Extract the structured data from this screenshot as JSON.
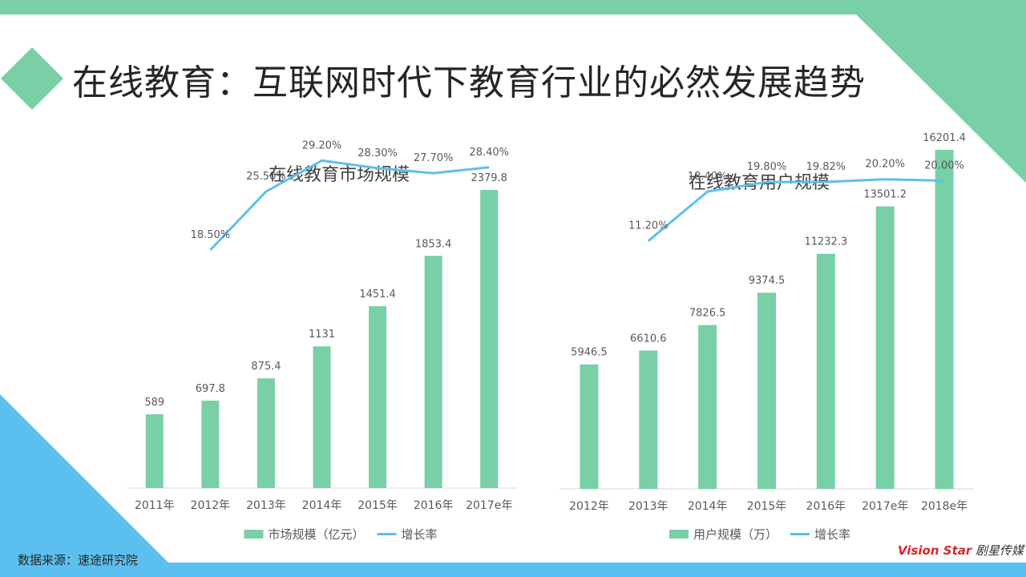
{
  "slide": {
    "title": "在线教育：互联网时代下教育行业的必然发展趋势",
    "source": "数据来源：速途研究院",
    "logo_text_a": "Vision Star",
    "logo_text_b": "剧星传媒"
  },
  "colors": {
    "bar": "#79cfa6",
    "line": "#5bc0f0",
    "top_bar": "#79cfa6",
    "bottom_bar": "#5bc0f0",
    "title_diamond": "#79cfa6",
    "axis_text": "#595959",
    "label_text": "#595959"
  },
  "chart_data": [
    {
      "type": "bar",
      "title": "在线教育市场规模",
      "categories": [
        "2011年",
        "2012年",
        "2013年",
        "2014年",
        "2015年",
        "2016年",
        "2017e年"
      ],
      "series": [
        {
          "name": "市场规模（亿元）",
          "type": "bar",
          "axis": "left",
          "values": [
            589,
            697.8,
            875.4,
            1131,
            1451.4,
            1853.4,
            2379.8
          ],
          "labels": [
            "589",
            "697.8",
            "875.4",
            "1131",
            "1451.4",
            "1853.4",
            "2379.8"
          ]
        },
        {
          "name": "增长率",
          "type": "line",
          "axis": "right",
          "values": [
            null,
            18.5,
            25.5,
            29.2,
            28.3,
            27.7,
            28.4
          ],
          "labels": [
            null,
            "18.50%",
            "25.50%",
            "29.20%",
            "28.30%",
            "27.70%",
            "28.40%"
          ]
        }
      ],
      "ylim": [
        0,
        3000
      ],
      "y2lim": [
        -10,
        35
      ],
      "legend": "bottom"
    },
    {
      "type": "bar",
      "title": "在线教育用户规模",
      "categories": [
        "2012年",
        "2013年",
        "2014年",
        "2015年",
        "2016年",
        "2017e年",
        "2018e年"
      ],
      "series": [
        {
          "name": "用户规模（万）",
          "type": "bar",
          "axis": "left",
          "values": [
            5946.5,
            6610.6,
            7826.5,
            9374.5,
            11232.3,
            13501.2,
            16201.4
          ],
          "labels": [
            "5946.5",
            "6610.6",
            "7826.5",
            "9374.5",
            "11232.3",
            "13501.2",
            "16201.4"
          ]
        },
        {
          "name": "增长率",
          "type": "line",
          "axis": "right",
          "values": [
            null,
            11.2,
            18.4,
            19.8,
            19.82,
            20.2,
            20.0
          ],
          "labels": [
            null,
            "11.20%",
            "18.40%",
            "19.80%",
            "19.82%",
            "20.20%",
            "20.00%"
          ]
        }
      ],
      "ylim": [
        0,
        18000
      ],
      "y2lim": [
        -25,
        30
      ],
      "legend": "bottom"
    }
  ]
}
